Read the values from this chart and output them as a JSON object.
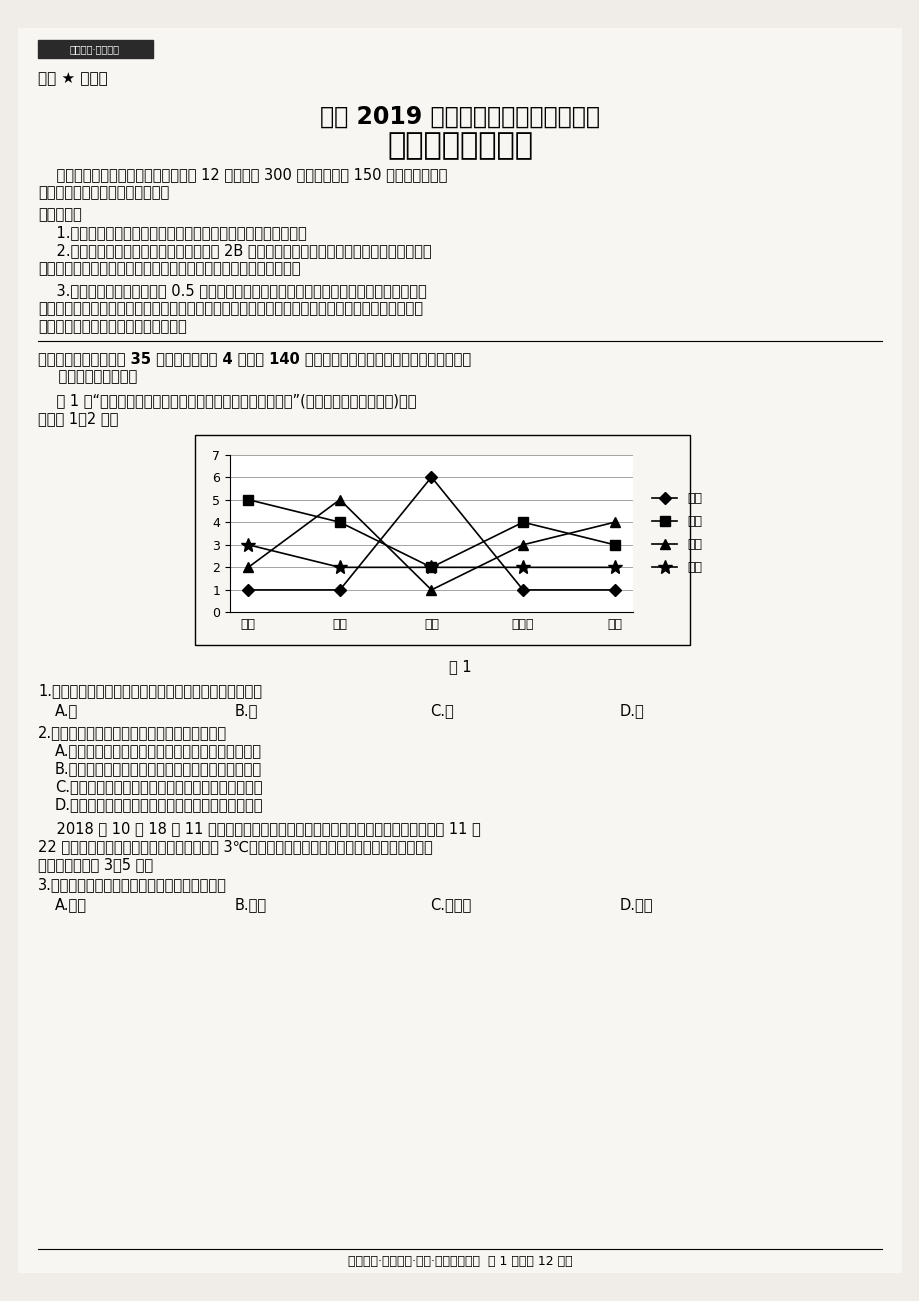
{
  "tag_text": "教考联盟·一模三诊",
  "secret_text": "秘密 ★ 启用前",
  "title1": "高中 2019 届毕业班第一次诊断性考试",
  "title2": "文科综合能力测试",
  "intro_line1": "    本试卷分选择题非选择题两部分，共 12 页。满分 300 分。考试用时 150 分钟。考试结束",
  "intro_line2": "后，将本试卷和答题卡一并交回。",
  "notice_title": "注意事项：",
  "notice1": "    1.答卷前，考生务必将自己的姓名、准考证号填写在答题卡上。",
  "notice2_line1": "    2.回答选择题时，每小题选出答案后，用 2B 铅笔把答题卡上对应题目的答案标号涂黑；如需",
  "notice2_line2": "改动，用橡皮擦干净后，再选涂其他答案标号。写在本试卷上无效。",
  "notice3_line1": "    3.回答非选择题时，必须用 0.5 毫米黑色签字笔作答，答案必须写在答题卡各题目指定区域",
  "notice3_line2": "内相应的位置；如需改动，先划掉原来的答案，然后再写上新的答案；不能使用涂改液、胶带纸、修",
  "notice3_line3": "正带。不按以上要求作答的答案无效。",
  "section_line1": "一、选择题：本大题共 35 个小题，每小题 4 分，共 140 分。在每小题给出的四个选项中，只有一项",
  "section_line2": "    是符合题目要求的。",
  "chart_intro_line1": "    图 1 为“首都北京经济圈四城市一体化发展规划优势比较图”(数值越大，条件越优越)。读",
  "chart_intro_line2": "图回答 1～2 题。",
  "chart_caption": "图 1",
  "categories": [
    "人口",
    "交通",
    "环境",
    "服务业",
    "经济"
  ],
  "series_jia": [
    1,
    1,
    6,
    1,
    1
  ],
  "series_yi": [
    5,
    4,
    2,
    4,
    3
  ],
  "series_bing": [
    2,
    5,
    1,
    3,
    4
  ],
  "series_ding": [
    3,
    2,
    2,
    2,
    2
  ],
  "legend_jia": "甲城",
  "legend_yi": "乙城",
  "legend_bing": "丙城",
  "legend_ding": "丁城",
  "ylim": [
    0,
    7
  ],
  "yticks": [
    0,
    1,
    2,
    3,
    4,
    5,
    6,
    7
  ],
  "q1": "1.首都北京经济圈四个城市中，经济发展条件最落后的是",
  "q1_A": "A.甲",
  "q1_B": "B.乙",
  "q1_C": "C.丙",
  "q1_D": "D.丁",
  "q2": "2.关于四个城市经济发展条件的叙述，正确的是",
  "q2_A": "A.因经济发达，治理污染经费足，甲城环境质量最好",
  "q2_B": "B.因人口众多，乙城服务业在四个城市中优势最明显",
  "q2_C": "C.因交通便利，人口向丙城集聚，丙人力资源最丰富",
  "q2_D": "D.因环境优美，丁城是分散北京批发物流最合适城市",
  "q3_intro_line1": "    2018 年 10 月 18 日 11 时，唐棵渠开闸放水拉开了宁夏引黄灌区冬灌工作序幕，计划 11 月",
  "q3_intro_line2": "22 日冬灌结束，每年入冬，在日平均气温为 3℃左右时最适宜冬灌，对小麦种植具有明显的增产",
  "q3_intro_line3": "作用。据此完成 3～5 题。",
  "q3": "3.下列种植小麦的省份中，最适宜进行冬灌的是",
  "q3_A": "A.湖南",
  "q3_B": "B.青海",
  "q3_C": "C.黑龙江",
  "q3_D": "D.河北",
  "footer": "教考联盟·一模三诊·一诊·文科综合试题  第 1 页（共 12 页）",
  "bg_color": "#f0ede8",
  "page_color": "#f8f6f2"
}
